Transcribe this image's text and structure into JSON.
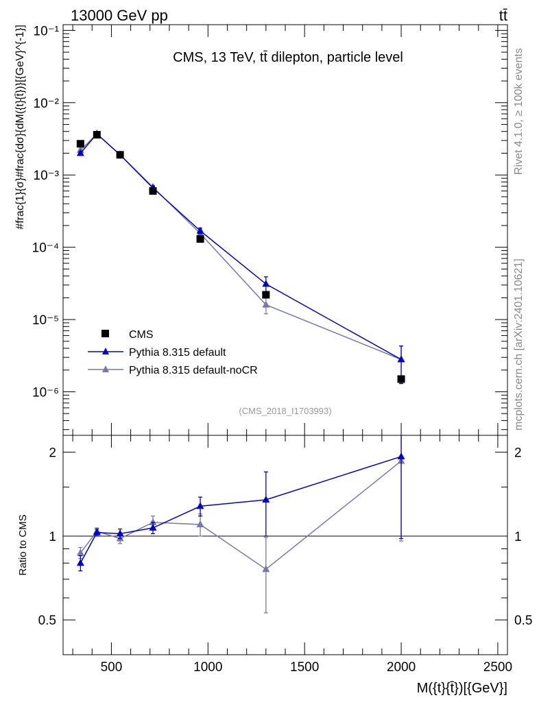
{
  "header": {
    "left_label": "13000 GeV pp",
    "right_label": "tt̄"
  },
  "side_labels": {
    "rivet": "Rivet 4.1.0, ≥ 100k events",
    "source": "mcplots.cern.ch [arXiv:2401.10621]"
  },
  "chart_data": [
    {
      "type": "line",
      "panel": "main",
      "title": "CMS, 13 TeV, tt̄ dilepton, particle level",
      "watermark": "(CMS_2018_I1703993)",
      "ylabel": "#frac{1}{σ}#frac{dσ}{dM({t}{t̄})}[{GeV}^{-1}]",
      "xlabel": "M({t}{t̄})[{GeV}]",
      "yscale": "log",
      "ylim": [
        2.5e-07,
        0.12
      ],
      "xlim": [
        250,
        2550
      ],
      "y_ticks": [
        {
          "value": 1e-06,
          "label": "10⁻⁶"
        },
        {
          "value": 1e-05,
          "label": "10⁻⁵"
        },
        {
          "value": 0.0001,
          "label": "10⁻⁴"
        },
        {
          "value": 0.001,
          "label": "10⁻³"
        },
        {
          "value": 0.01,
          "label": "10⁻²"
        },
        {
          "value": 0.1,
          "label": "10⁻¹"
        }
      ],
      "x_ticks": [
        500,
        1000,
        1500,
        2000,
        2500
      ],
      "legend": [
        "CMS",
        "Pythia 8.315 default",
        "Pythia 8.315 default-noCR"
      ],
      "legend_position": "bottom-left",
      "series": [
        {
          "name": "CMS",
          "marker": "square",
          "color": "#000000",
          "x": [
            340,
            425,
            545,
            715,
            960,
            1300,
            2000
          ],
          "values": [
            0.0027,
            0.0036,
            0.0019,
            0.0006,
            0.00013,
            2.2e-05,
            1.5e-06
          ]
        },
        {
          "name": "Pythia 8.315 default",
          "marker": "triangle",
          "color": "#0000cc",
          "x": [
            340,
            425,
            545,
            715,
            960,
            1300,
            2000
          ],
          "values": [
            0.002,
            0.0037,
            0.0019,
            0.00066,
            0.000169,
            3.1e-05,
            2.8e-06
          ],
          "errors": [
            0.0001,
            0.0001,
            0.0001,
            4e-05,
            1.5e-05,
            8e-06,
            1.5e-06
          ]
        },
        {
          "name": "Pythia 8.315 default-noCR",
          "marker": "triangle",
          "color": "#7777aa",
          "x": [
            340,
            425,
            545,
            715,
            960,
            1300,
            2000
          ],
          "values": [
            0.0022,
            0.0037,
            0.0019,
            0.00068,
            0.000155,
            1.6e-05,
            2.8e-06
          ],
          "errors": [
            0.0001,
            0.0001,
            0.0001,
            4e-05,
            1e-05,
            4e-06,
            1.5e-06
          ]
        }
      ]
    },
    {
      "type": "line",
      "panel": "ratio",
      "ylabel": "Ratio to CMS",
      "yscale": "log",
      "ylim": [
        0.375,
        2.3
      ],
      "xlim": [
        250,
        2550
      ],
      "y_ticks": [
        {
          "value": 0.5,
          "label": "0.5"
        },
        {
          "value": 1,
          "label": "1"
        },
        {
          "value": 2,
          "label": "2"
        }
      ],
      "reference_line": 1,
      "series": [
        {
          "name": "Pythia 8.315 default",
          "marker": "triangle",
          "color": "#0000cc",
          "x": [
            340,
            425,
            545,
            715,
            960,
            1300,
            2000
          ],
          "values": [
            0.8,
            1.03,
            1.02,
            1.07,
            1.28,
            1.35,
            1.93
          ],
          "errors": [
            0.05,
            0.03,
            0.04,
            0.05,
            0.1,
            0.35,
            0.95
          ]
        },
        {
          "name": "Pythia 8.315 default-noCR",
          "marker": "triangle",
          "color": "#7777aa",
          "x": [
            340,
            425,
            545,
            715,
            960,
            1300,
            2000
          ],
          "values": [
            0.87,
            1.04,
            0.98,
            1.12,
            1.1,
            0.76,
            1.86
          ],
          "errors": [
            0.04,
            0.03,
            0.04,
            0.06,
            0.1,
            0.23,
            0.9
          ]
        }
      ]
    }
  ]
}
